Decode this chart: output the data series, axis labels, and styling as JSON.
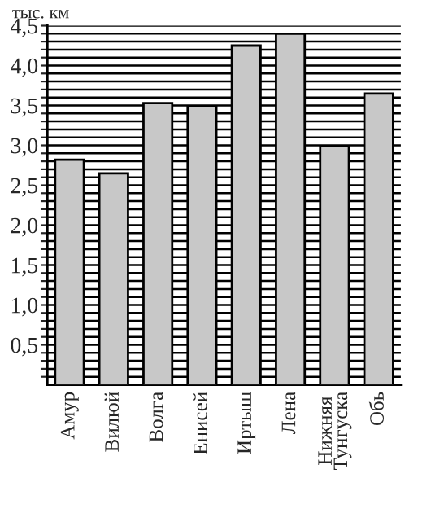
{
  "chart_data": {
    "type": "bar",
    "ylabel": "тыс. км",
    "categories": [
      "Амур",
      "Вилюй",
      "Волга",
      "Енисей",
      "Иртыш",
      "Лена",
      "Нижняя Тунгуска",
      "Обь"
    ],
    "values": [
      2.82,
      2.65,
      3.53,
      3.49,
      4.25,
      4.4,
      2.99,
      3.65
    ],
    "color": "#c8c8c8",
    "ylim": [
      0,
      4.5
    ],
    "yticks": [
      {
        "value": 0.1,
        "label": null
      },
      {
        "value": 0.2,
        "label": null
      },
      {
        "value": 0.3,
        "label": null
      },
      {
        "value": 0.4,
        "label": null
      },
      {
        "value": 0.5,
        "label": "0,5"
      },
      {
        "value": 0.6,
        "label": null
      },
      {
        "value": 0.7,
        "label": null
      },
      {
        "value": 0.8,
        "label": null
      },
      {
        "value": 0.9,
        "label": null
      },
      {
        "value": 1.0,
        "label": "1,0"
      },
      {
        "value": 1.1,
        "label": null
      },
      {
        "value": 1.2,
        "label": null
      },
      {
        "value": 1.3,
        "label": null
      },
      {
        "value": 1.4,
        "label": null
      },
      {
        "value": 1.5,
        "label": "1,5"
      },
      {
        "value": 1.6,
        "label": null
      },
      {
        "value": 1.7,
        "label": null
      },
      {
        "value": 1.8,
        "label": null
      },
      {
        "value": 1.9,
        "label": null
      },
      {
        "value": 2.0,
        "label": "2,0"
      },
      {
        "value": 2.1,
        "label": null
      },
      {
        "value": 2.2,
        "label": null
      },
      {
        "value": 2.3,
        "label": null
      },
      {
        "value": 2.4,
        "label": null
      },
      {
        "value": 2.5,
        "label": "2,5"
      },
      {
        "value": 2.6,
        "label": null
      },
      {
        "value": 2.7,
        "label": null
      },
      {
        "value": 2.8,
        "label": null
      },
      {
        "value": 2.9,
        "label": null
      },
      {
        "value": 3.0,
        "label": "3,0"
      },
      {
        "value": 3.1,
        "label": null
      },
      {
        "value": 3.2,
        "label": null
      },
      {
        "value": 3.3,
        "label": null
      },
      {
        "value": 3.4,
        "label": null
      },
      {
        "value": 3.5,
        "label": "3,5"
      },
      {
        "value": 3.6,
        "label": null
      },
      {
        "value": 3.7,
        "label": null
      },
      {
        "value": 3.8,
        "label": null
      },
      {
        "value": 3.9,
        "label": null
      },
      {
        "value": 4.0,
        "label": "4,0"
      },
      {
        "value": 4.1,
        "label": null
      },
      {
        "value": 4.2,
        "label": null
      },
      {
        "value": 4.3,
        "label": null
      },
      {
        "value": 4.4,
        "label": null
      },
      {
        "value": 4.5,
        "label": "4,5"
      }
    ],
    "grid": "y"
  }
}
